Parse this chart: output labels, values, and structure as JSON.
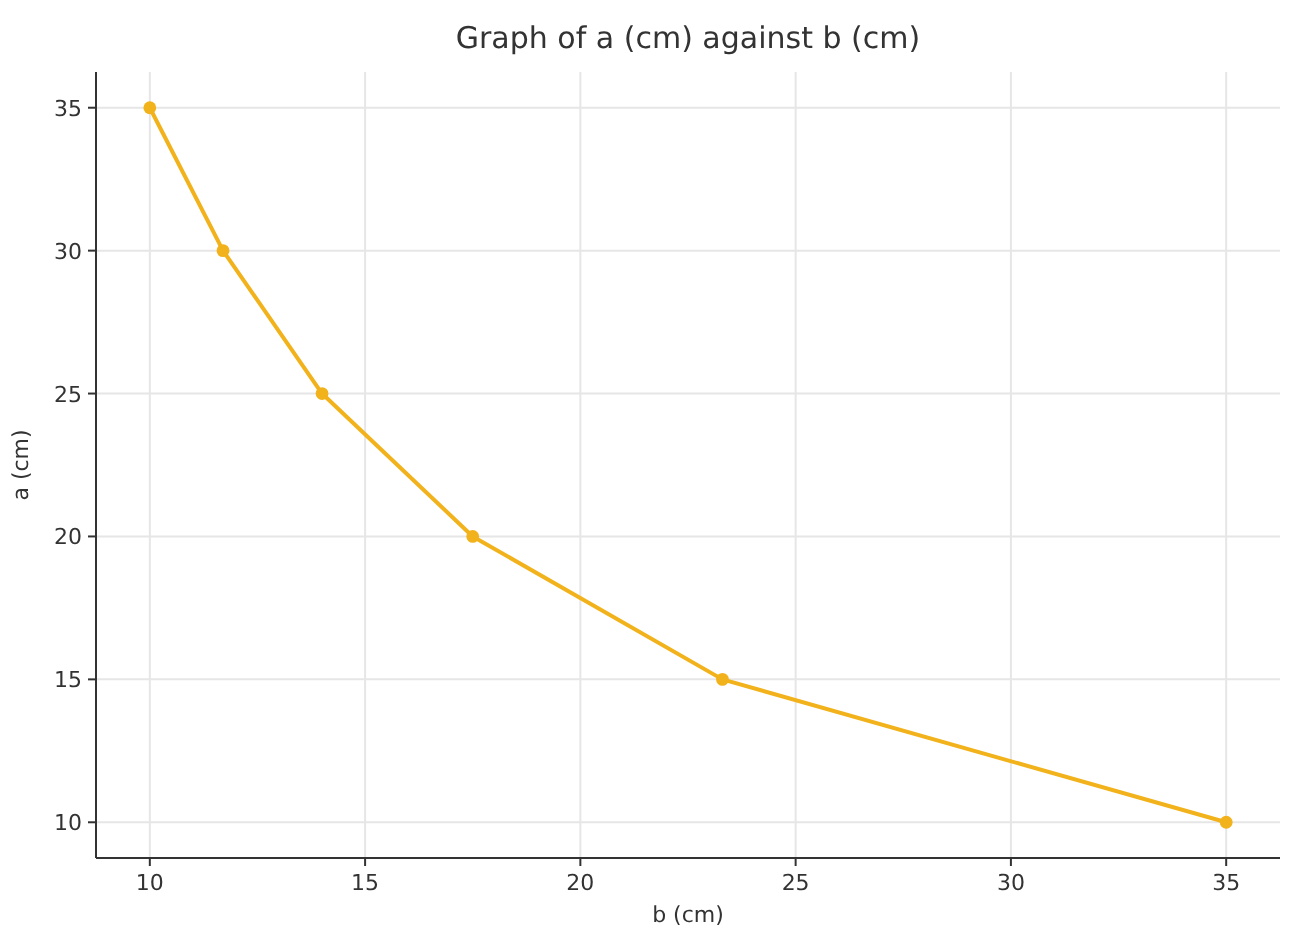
{
  "chart_data": {
    "type": "line",
    "title": "Graph of a (cm) against b (cm)",
    "xlabel": "b (cm)",
    "ylabel": "a (cm)",
    "x": [
      10,
      11.7,
      14,
      17.5,
      23.3,
      35
    ],
    "series": [
      {
        "color": "#f2b21b",
        "values": [
          35,
          30,
          25,
          20,
          15,
          10
        ]
      }
    ],
    "xlim": [
      8.75,
      36.25
    ],
    "ylim": [
      8.75,
      36.25
    ],
    "xticks": [
      10,
      15,
      20,
      25,
      30,
      35
    ],
    "yticks": [
      10,
      15,
      20,
      25,
      30,
      35
    ],
    "grid": true,
    "marker": "circle",
    "line_style": "solid"
  }
}
